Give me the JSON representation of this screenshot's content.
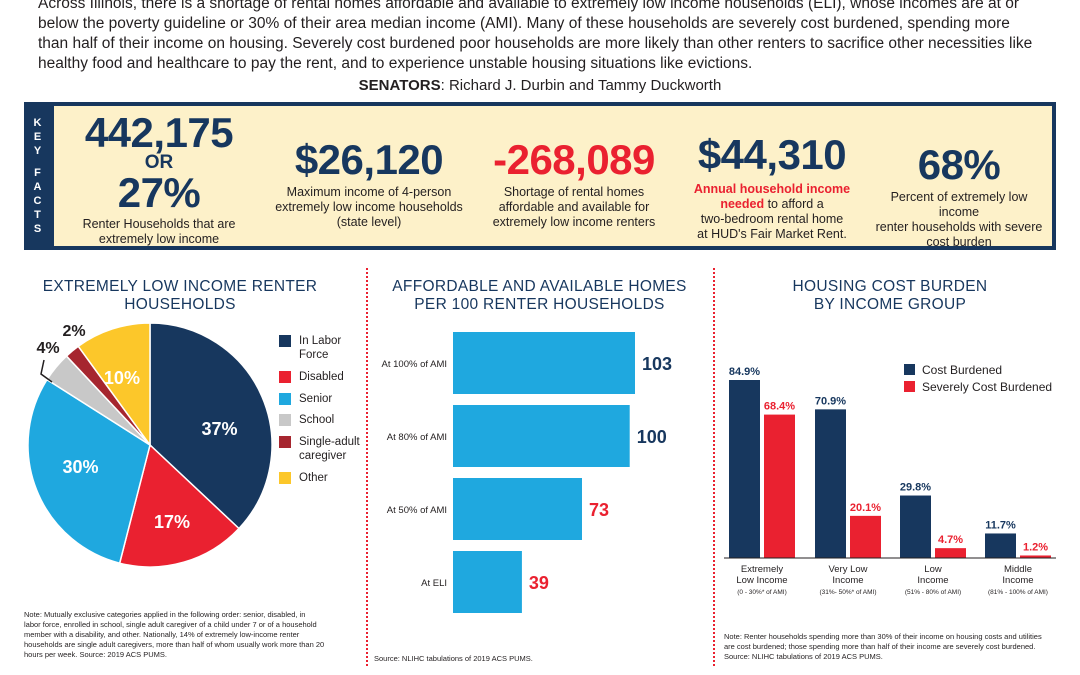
{
  "intro_lines": [
    "Across Illinois, there is a shortage of rental homes affordable and available to extremely low income households (ELI), whose incomes are at or",
    "below the poverty guideline or 30% of their area median income (AMI). Many of these households are severely cost burdened, spending more",
    "than half of their income on housing. Severely cost burdened poor households are more likely than other renters to sacrifice other necessities like",
    "healthy food and healthcare to pay the rent, and to experience unstable housing situations like evictions."
  ],
  "senators": {
    "label": "SENATORS",
    "names": ": Richard J. Durbin and Tammy Duckworth"
  },
  "key_facts": {
    "tab_letters": [
      "K",
      "E",
      "Y",
      "F",
      "A",
      "C",
      "T",
      "S"
    ],
    "colors": {
      "navy": "#17375e",
      "red": "#ea2130",
      "cream": "#fdf1c9"
    },
    "fact1": {
      "value1": "442,175",
      "or": "OR",
      "value2": "27%",
      "desc_lines": [
        "Renter Households that are",
        "extremely low income"
      ]
    },
    "fact2": {
      "value": "$26,120",
      "desc_lines": [
        "Maximum income of 4-person",
        "extremely low income households",
        "(state level)"
      ]
    },
    "fact3": {
      "value": "-268,089",
      "desc_lines": [
        "Shortage of rental homes",
        "affordable and available for",
        "extremely low income renters"
      ]
    },
    "fact4": {
      "value": "$44,310",
      "desc_red_1": "Annual household income",
      "desc_red_2": "needed",
      "desc_rest_2": " to afford a",
      "desc_lines": [
        "two-bedroom rental home",
        "at HUD's Fair Market Rent."
      ]
    },
    "fact5": {
      "value": "68%",
      "desc_lines": [
        "Percent of extremely low income",
        "renter households with severe",
        "cost burden"
      ]
    }
  },
  "chart_data": [
    {
      "type": "pie",
      "title_lines": [
        "EXTREMELY LOW INCOME RENTER",
        "HOUSEHOLDS"
      ],
      "slices": [
        {
          "label": "In Labor Force",
          "value": 37,
          "display": "37%",
          "color": "#17375e"
        },
        {
          "label": "Disabled",
          "value": 17,
          "display": "17%",
          "color": "#ea2130"
        },
        {
          "label": "Senior",
          "value": 30,
          "display": "30%",
          "color": "#1fa8df"
        },
        {
          "label": "School",
          "value": 4,
          "display": "4%",
          "color": "#c8c8c8"
        },
        {
          "label": "Single-adult caregiver",
          "value": 2,
          "display": "2%",
          "color": "#a6262f"
        },
        {
          "label": "Other",
          "value": 10,
          "display": "10%",
          "color": "#fcc72a"
        }
      ],
      "legend": [
        {
          "lines": [
            "In Labor",
            "Force"
          ],
          "color": "#17375e"
        },
        {
          "lines": [
            "Disabled"
          ],
          "color": "#ea2130"
        },
        {
          "lines": [
            "Senior"
          ],
          "color": "#1fa8df"
        },
        {
          "lines": [
            "School"
          ],
          "color": "#c8c8c8"
        },
        {
          "lines": [
            "Single-adult",
            "caregiver"
          ],
          "color": "#a6262f"
        },
        {
          "lines": [
            "Other"
          ],
          "color": "#fcc72a"
        }
      ],
      "note_lines": [
        "Note: Mutually exclusive categories applied in the following order: senior, disabled, in",
        "labor force, enrolled in school, single adult caregiver of a child under 7 or of a household",
        "member with a disability, and other. Nationally, 14% of extremely low-income renter",
        "households are single adult caregivers,  more than half of whom usually work more than 20",
        "hours per week. Source: 2019 ACS PUMS."
      ]
    },
    {
      "type": "bar",
      "orientation": "horizontal",
      "title_lines": [
        "AFFORDABLE AND AVAILABLE HOMES",
        "PER 100 RENTER HOUSEHOLDS"
      ],
      "categories": [
        "At 100% of AMI",
        "At 80% of AMI",
        "At 50% of AMI",
        "At ELI"
      ],
      "values": [
        103,
        100,
        73,
        39
      ],
      "value_colors": [
        "#17375e",
        "#17375e",
        "#ea2130",
        "#ea2130"
      ],
      "bar_color": "#1fa8df",
      "xlim": [
        0,
        103
      ],
      "source": "Source: NLIHC tabulations of 2019 ACS PUMS."
    },
    {
      "type": "bar",
      "title_lines": [
        "HOUSING COST BURDEN",
        "BY INCOME GROUP"
      ],
      "categories": [
        {
          "lines": [
            "Extremely",
            "Low Income"
          ],
          "sub": "(0 - 30%* of AMI)"
        },
        {
          "lines": [
            "Very Low",
            "Income"
          ],
          "sub": "(31%- 50%* of AMI)"
        },
        {
          "lines": [
            "Low",
            "Income"
          ],
          "sub": "(51% - 80% of AMI)"
        },
        {
          "lines": [
            "Middle",
            "Income"
          ],
          "sub": "(81% - 100% of AMI)"
        }
      ],
      "series": [
        {
          "name": "Cost Burdened",
          "values": [
            84.9,
            70.9,
            29.8,
            11.7
          ],
          "labels": [
            "84.9%",
            "70.9%",
            "29.8%",
            "11.7%"
          ],
          "color": "#17375e"
        },
        {
          "name": "Severely Cost Burdened",
          "values": [
            68.4,
            20.1,
            4.7,
            1.2
          ],
          "labels": [
            "68.4%",
            "20.1%",
            "4.7%",
            "1.2%"
          ],
          "color": "#ea2130"
        }
      ],
      "ylim": [
        0,
        84.9
      ],
      "note_lines": [
        "Note: Renter households spending more than 30% of their income on housing costs and utilities",
        "are cost burdened; those spending more than half of their income are severely cost burdened.",
        "Source: NLIHC tabulations of 2019 ACS PUMS."
      ]
    }
  ]
}
